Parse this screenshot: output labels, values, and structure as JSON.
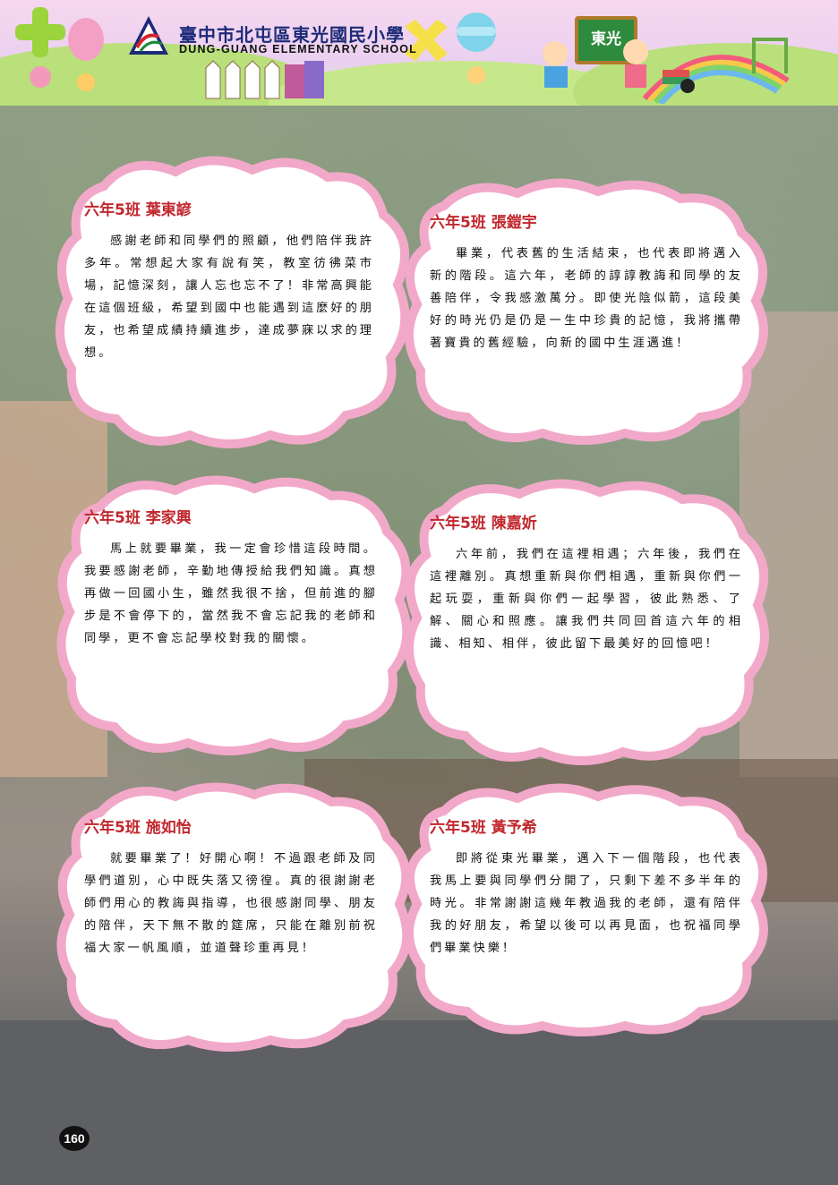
{
  "header": {
    "school_name_cn": "臺中市北屯區東光國民小學",
    "school_name_en": "DUNG-GUANG ELEMENTARY SCHOOL",
    "board_text": "東光"
  },
  "messages": [
    {
      "name": "六年5班 葉東諺",
      "text": "感謝老師和同學們的照顧，他們陪伴我許多年。常想起大家有說有笑，教室彷彿菜市場，記憶深刻，讓人忘也忘不了！非常高興能在這個班級，希望到國中也能遇到這麼好的朋友，也希望成績持續進步，達成夢寐以求的理想。"
    },
    {
      "name": "六年5班 張鎧宇",
      "text": "畢業，代表舊的生活結束，也代表即將邁入新的階段。這六年，老師的諄諄教誨和同學的友善陪伴，令我感激萬分。即使光陰似箭，這段美好的時光仍是仍是一生中珍貴的記憶，我將攜帶著寶貴的舊經驗，向新的國中生涯邁進！"
    },
    {
      "name": "六年5班 李家興",
      "text": "馬上就要畢業，我一定會珍惜這段時間。我要感謝老師，辛勤地傳授給我們知識。真想再做一回國小生，雖然我很不捨，但前進的腳步是不會停下的，當然我不會忘記我的老師和同學，更不會忘記學校對我的關懷。"
    },
    {
      "name": "六年5班 陳嘉妡",
      "text": "六年前，我們在這裡相遇；六年後，我們在這裡離別。真想重新與你們相遇，重新與你們一起玩耍，重新與你們一起學習，彼此熟悉、了解、關心和照應。讓我們共同回首這六年的相識、相知、相伴，彼此留下最美好的回憶吧！"
    },
    {
      "name": "六年5班 施如怡",
      "text": "就要畢業了！好開心啊！不過跟老師及同學們道別，心中既失落又徬徨。真的很謝謝老師們用心的教誨與指導，也很感謝同學、朋友的陪伴，天下無不散的筵席，只能在離別前祝福大家一帆風順，並道聲珍重再見！"
    },
    {
      "name": "六年5班 黃予希",
      "text": "即將從東光畢業，邁入下一個階段，也代表我馬上要與同學們分開了，只剩下差不多半年的時光。非常謝謝這幾年教過我的老師，還有陪伴我的好朋友，希望以後可以再見面，也祝福同學們畢業快樂！"
    }
  ],
  "page_number": "160"
}
